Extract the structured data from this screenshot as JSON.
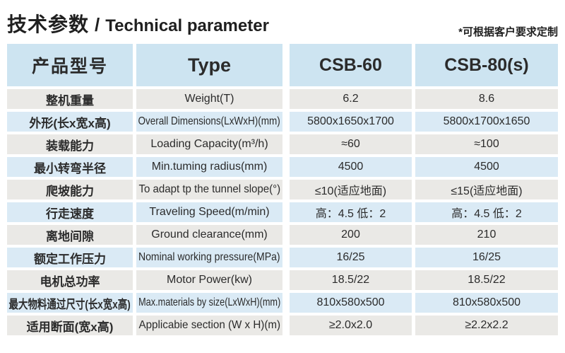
{
  "title": {
    "zh": "技术参数",
    "separator": "/",
    "en": "Technical parameter"
  },
  "note": "*可根据客户要求定制",
  "columns": {
    "model": "产品型号",
    "type": "Type",
    "csb60": "CSB-60",
    "csb80": "CSB-80(s)"
  },
  "rows": [
    {
      "zh": "整机重量",
      "en": "Weight(T)",
      "csb60": "6.2",
      "csb80": "8.6"
    },
    {
      "zh": "外形(长x宽x高)",
      "en": "Overall Dimensions(LxWxH)(mm)",
      "csb60": "5800x1650x1700",
      "csb80": "5800x1700x1650"
    },
    {
      "zh": "装载能力",
      "en": "Loading Capacity(m³/h)",
      "csb60": "≈60",
      "csb80": "≈100"
    },
    {
      "zh": "最小转弯半径",
      "en": "Min.tuming radius(mm)",
      "csb60": "4500",
      "csb80": "4500"
    },
    {
      "zh": "爬坡能力",
      "en": "To adapt tp the tunnel slope(°)",
      "csb60": "≤10(适应地面)",
      "csb80": "≤15(适应地面)"
    },
    {
      "zh": "行走速度",
      "en": "Traveling Speed(m/min)",
      "csb60": "高：4.5 低：2",
      "csb80": "高：4.5 低：2"
    },
    {
      "zh": "离地间隙",
      "en": "Ground clearance(mm)",
      "csb60": "200",
      "csb80": "210"
    },
    {
      "zh": "额定工作压力",
      "en": "Nominal working pressure(MPa)",
      "csb60": "16/25",
      "csb80": "16/25"
    },
    {
      "zh": "电机总功率",
      "en": "Motor Power(kw)",
      "csb60": "18.5/22",
      "csb80": "18.5/22"
    },
    {
      "zh": "最大物料通过尺寸(长x宽x高)",
      "en": "Max.materials by size(LxWxH)(mm)",
      "csb60": "810x580x500",
      "csb80": "810x580x500"
    },
    {
      "zh": "适用断面(宽x高)",
      "en": "Applicabie section (W x H)(m)",
      "csb60": "≥2.0x2.0",
      "csb80": "≥2.2x2.2"
    }
  ],
  "colors": {
    "header_bg": "#cde4f1",
    "row_blue": "#daeaf5",
    "row_gray": "#eae9e6",
    "text": "#2b2b2b",
    "title_text": "#1f1f1f"
  }
}
